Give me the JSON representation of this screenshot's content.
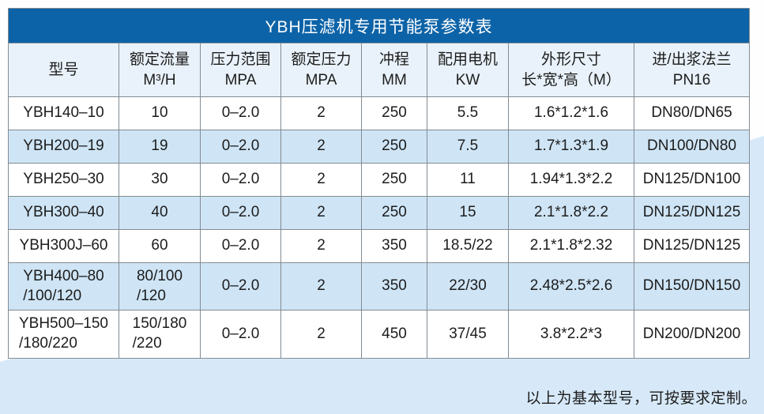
{
  "table": {
    "title": "YBH压滤机专用节能泵参数表",
    "columns": [
      {
        "label": "型号"
      },
      {
        "label": "额定流量\nM³/H"
      },
      {
        "label": "压力范围\nMPA"
      },
      {
        "label": "额定压力\nMPA"
      },
      {
        "label": "冲程\nMM"
      },
      {
        "label": "配用电机\nKW"
      },
      {
        "label": "外形尺寸\n长*宽*高（M）"
      },
      {
        "label": "进/出浆法兰\nPN16"
      }
    ],
    "rows": [
      [
        "YBH140–10",
        "10",
        "0–2.0",
        "2",
        "250",
        "5.5",
        "1.6*1.2*1.6",
        "DN80/DN65"
      ],
      [
        "YBH200–19",
        "19",
        "0–2.0",
        "2",
        "250",
        "7.5",
        "1.7*1.3*1.9",
        "DN100/DN80"
      ],
      [
        "YBH250–30",
        "30",
        "0–2.0",
        "2",
        "250",
        "11",
        "1.94*1.3*2.2",
        "DN125/DN100"
      ],
      [
        "YBH300–40",
        "40",
        "0–2.0",
        "2",
        "250",
        "15",
        "2.1*1.8*2.2",
        "DN125/DN125"
      ],
      [
        "YBH300J–60",
        "60",
        "0–2.0",
        "2",
        "350",
        "18.5/22",
        "2.1*1.8*2.32",
        "DN125/DN125"
      ],
      [
        "YBH400–80\n/100/120",
        "80/100\n/120",
        "0–2.0",
        "2",
        "350",
        "22/30",
        "2.48*2.5*2.6",
        "DN150/DN150"
      ],
      [
        "YBH500–150\n/180/220",
        "150/180\n/220",
        "0–2.0",
        "2",
        "450",
        "37/45",
        "3.8*2.2*3",
        "DN200/DN200"
      ]
    ],
    "footnote": "以上为基本型号，可按要求定制。"
  },
  "colors": {
    "title_bar": "#0d63a7",
    "title_text": "#ffffff",
    "header_bg": "#e9f2fa",
    "row_bg": "#ffffff",
    "row_alt_bg": "#cfe5f6",
    "page_accent_bg": "#d7e9f8",
    "grid_line": "#828b93",
    "text": "#1c1c1c"
  }
}
